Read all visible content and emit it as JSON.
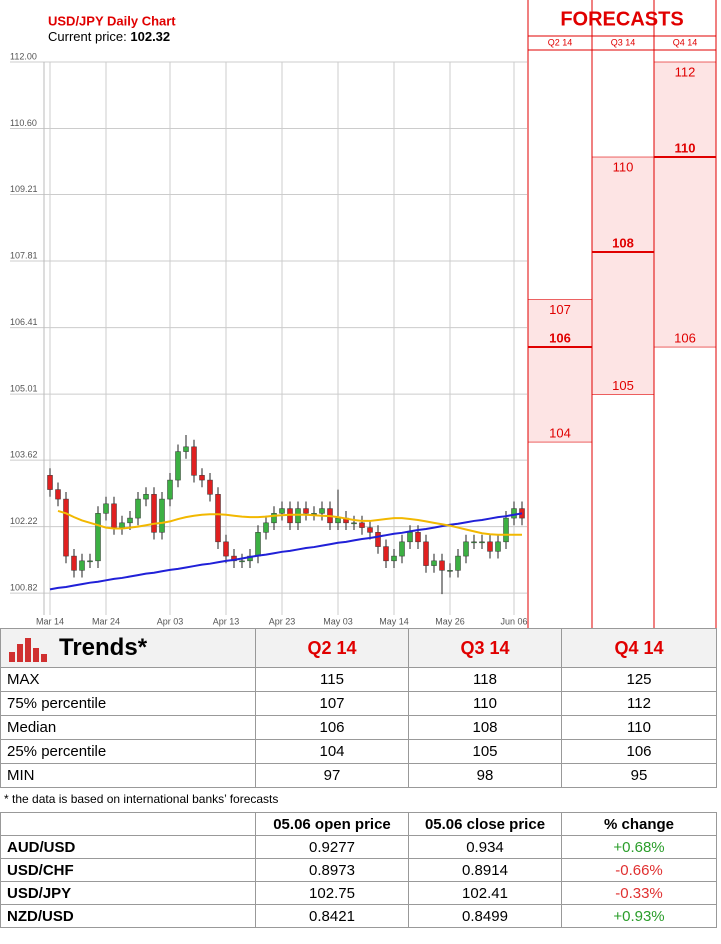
{
  "chart_data": {
    "type": "candlestick",
    "title": "USD/JPY Daily Chart",
    "price_label": "Current price:",
    "current_price": 102.32,
    "categories": [
      "Mar 14",
      null,
      null,
      null,
      null,
      null,
      null,
      "Mar 24",
      null,
      null,
      null,
      null,
      null,
      null,
      null,
      "Apr 03",
      null,
      null,
      null,
      null,
      null,
      null,
      "Apr 13",
      null,
      null,
      null,
      null,
      null,
      null,
      "Apr 23",
      null,
      null,
      null,
      null,
      null,
      null,
      "May 03",
      null,
      null,
      null,
      null,
      null,
      null,
      "May 14",
      null,
      null,
      null,
      null,
      null,
      null,
      "May 26",
      null,
      null,
      null,
      null,
      null,
      null,
      null,
      "Jun 06",
      null
    ],
    "open": [
      103.3,
      103.0,
      102.8,
      101.6,
      101.3,
      101.5,
      101.5,
      102.5,
      102.7,
      102.2,
      102.3,
      102.4,
      102.8,
      102.9,
      102.1,
      102.8,
      103.2,
      103.8,
      103.9,
      103.3,
      103.2,
      102.9,
      101.9,
      101.6,
      101.5,
      101.5,
      101.6,
      102.1,
      102.3,
      102.5,
      102.6,
      102.3,
      102.6,
      102.5,
      102.5,
      102.6,
      102.3,
      102.4,
      102.3,
      102.3,
      102.2,
      102.1,
      101.8,
      101.5,
      101.6,
      101.9,
      102.1,
      101.9,
      101.4,
      101.5,
      101.3,
      101.3,
      101.6,
      101.9,
      101.9,
      101.9,
      101.7,
      101.9,
      102.4,
      102.6
    ],
    "high": [
      103.45,
      103.15,
      102.95,
      101.75,
      101.65,
      101.65,
      102.65,
      102.85,
      102.85,
      102.45,
      102.55,
      102.95,
      103.05,
      103.05,
      102.95,
      103.35,
      103.95,
      104.15,
      104.05,
      103.45,
      103.35,
      103.05,
      102.05,
      101.75,
      101.65,
      101.75,
      102.25,
      102.45,
      102.65,
      102.75,
      102.75,
      102.75,
      102.75,
      102.65,
      102.75,
      102.75,
      103.0,
      102.55,
      102.45,
      102.45,
      102.35,
      102.25,
      101.95,
      101.75,
      102.05,
      102.25,
      102.25,
      102.05,
      101.65,
      101.65,
      101.45,
      101.75,
      102.05,
      102.05,
      102.05,
      102.05,
      102.05,
      102.55,
      102.75,
      102.75
    ],
    "low": [
      102.85,
      102.65,
      101.45,
      101.15,
      101.15,
      101.35,
      101.35,
      102.35,
      102.05,
      102.05,
      102.15,
      102.25,
      102.65,
      101.95,
      101.95,
      102.65,
      103.05,
      103.65,
      103.15,
      103.05,
      102.75,
      101.75,
      101.45,
      101.35,
      101.35,
      101.35,
      101.45,
      101.95,
      102.15,
      102.35,
      102.15,
      102.15,
      102.35,
      102.35,
      102.35,
      102.15,
      102.15,
      102.15,
      102.15,
      102.05,
      101.95,
      101.65,
      101.35,
      101.35,
      101.45,
      101.75,
      101.75,
      101.25,
      101.25,
      100.8,
      101.15,
      101.15,
      101.45,
      101.75,
      101.75,
      101.55,
      101.55,
      101.75,
      102.25,
      102.25
    ],
    "close": [
      103.0,
      102.8,
      101.6,
      101.3,
      101.5,
      101.5,
      102.5,
      102.7,
      102.2,
      102.3,
      102.4,
      102.8,
      102.9,
      102.1,
      102.8,
      103.2,
      103.8,
      103.9,
      103.3,
      103.2,
      102.9,
      101.9,
      101.6,
      101.5,
      101.5,
      101.6,
      102.1,
      102.3,
      102.5,
      102.6,
      102.3,
      102.6,
      102.5,
      102.5,
      102.6,
      102.3,
      102.4,
      102.3,
      102.3,
      102.2,
      102.1,
      101.8,
      101.5,
      101.6,
      101.9,
      102.1,
      101.9,
      101.4,
      101.5,
      101.3,
      101.3,
      101.6,
      101.9,
      101.9,
      101.9,
      101.7,
      101.9,
      102.4,
      102.6,
      102.4
    ],
    "up_color": "#3cb043",
    "down_color": "#e02020",
    "series": [
      {
        "color": "#2020d8",
        "values": [
          100.9,
          100.93,
          100.95,
          100.98,
          101.01,
          101.04,
          101.06,
          101.09,
          101.12,
          101.14,
          101.17,
          101.2,
          101.23,
          101.25,
          101.28,
          101.31,
          101.33,
          101.36,
          101.39,
          101.42,
          101.44,
          101.47,
          101.5,
          101.52,
          101.55,
          101.58,
          101.61,
          101.63,
          101.66,
          101.69,
          101.71,
          101.74,
          101.77,
          101.79,
          101.82,
          101.85,
          101.88,
          101.9,
          101.93,
          101.96,
          101.98,
          102.01,
          102.04,
          102.07,
          102.09,
          102.12,
          102.15,
          102.17,
          102.2,
          102.23,
          102.26,
          102.28,
          102.31,
          102.34,
          102.36,
          102.39,
          102.42,
          102.44,
          102.47,
          102.5
        ]
      },
      {
        "color": "#f2b800",
        "values": [
          null,
          102.55,
          102.5,
          102.42,
          102.35,
          102.3,
          102.25,
          102.2,
          102.18,
          102.18,
          102.2,
          102.22,
          102.25,
          102.28,
          102.3,
          102.33,
          102.38,
          102.42,
          102.45,
          102.47,
          102.48,
          102.48,
          102.47,
          102.45,
          102.43,
          102.42,
          102.42,
          102.43,
          102.45,
          102.46,
          102.47,
          102.47,
          102.47,
          102.46,
          102.45,
          102.44,
          102.42,
          102.39,
          102.36,
          102.34,
          102.34,
          102.36,
          102.38,
          102.4,
          102.4,
          102.38,
          102.36,
          102.33,
          102.3,
          102.27,
          102.24,
          102.2,
          102.16,
          102.12,
          102.08,
          102.06,
          102.05,
          102.05,
          102.05,
          102.05
        ]
      }
    ],
    "ylim": [
      100.36,
      112
    ],
    "yticks": [
      {
        "value": 112,
        "label": "112.00"
      },
      {
        "value": 110.6,
        "label": "110.60"
      },
      109.21,
      107.81,
      106.41,
      105.01,
      103.62,
      102.22,
      100.82
    ],
    "grid": true
  },
  "forecasts": {
    "title": "FORECASTS",
    "color": "#e00000",
    "fill": "#fde4e4"
  },
  "trends": {
    "title": "Trends*",
    "columns": [
      "Q2 14",
      "Q3 14",
      "Q4 14"
    ],
    "rows": [
      {
        "label": "MAX",
        "values": [
          115,
          118,
          125
        ]
      },
      {
        "label": "75% percentile",
        "values": [
          107,
          110,
          112
        ]
      },
      {
        "label": "Median",
        "values": [
          106,
          108,
          110
        ]
      },
      {
        "label": "25% percentile",
        "values": [
          104,
          105,
          106
        ]
      },
      {
        "label": "MIN",
        "values": [
          97,
          98,
          95
        ]
      }
    ]
  },
  "footnote": "* the data is based on international banks’ forecasts",
  "rates": {
    "columns": [
      "05.06 open price",
      "05.06 close price",
      "% change"
    ],
    "rows": [
      {
        "pair": "AUD/USD",
        "values": [
          0.9277,
          0.934,
          "+0.68%"
        ]
      },
      {
        "pair": "USD/CHF",
        "values": [
          0.8973,
          0.8914,
          "-0.66%"
        ]
      },
      {
        "pair": "USD/JPY",
        "values": [
          102.75,
          102.41,
          "-0.33%"
        ]
      },
      {
        "pair": "NZD/USD",
        "values": [
          0.8421,
          0.8499,
          "+0.93%"
        ]
      }
    ]
  }
}
